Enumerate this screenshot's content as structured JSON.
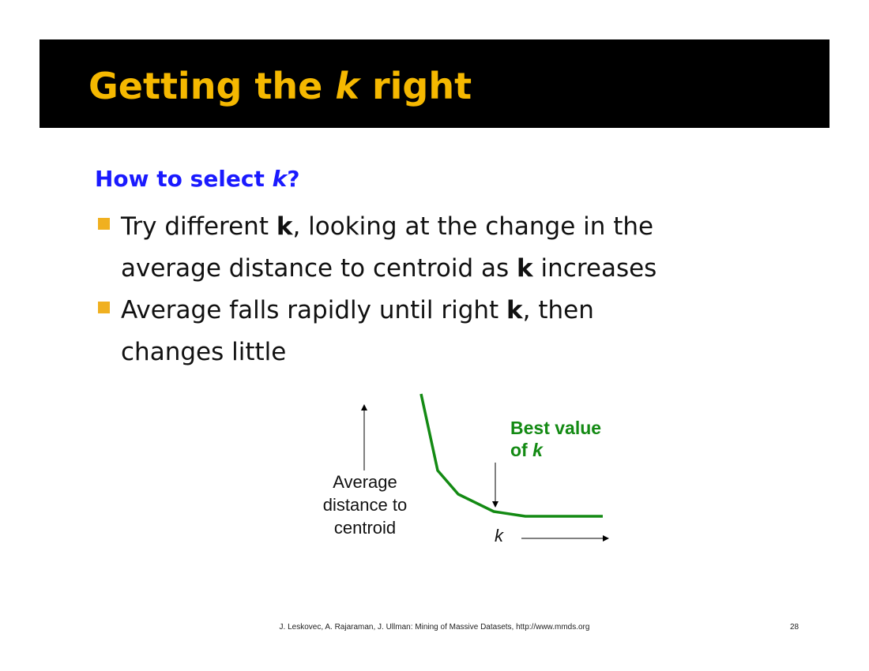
{
  "slide": {
    "title_pre": "Getting the ",
    "title_k": "k",
    "title_post": " right",
    "heading_pre": "How to select ",
    "heading_k": "k",
    "heading_post": "?",
    "bullets": [
      {
        "lines": [
          [
            "Try different ",
            "k",
            ", looking at the change in the"
          ],
          [
            "average distance to centroid as ",
            "k",
            " increases"
          ]
        ]
      },
      {
        "lines": [
          [
            "Average falls rapidly until right ",
            "k",
            ", then"
          ],
          [
            "changes little",
            "",
            ""
          ]
        ]
      }
    ],
    "footer": "J. Leskovec, A. Rajaraman, J. Ullman: Mining of Massive Datasets, http://www.mmds.org",
    "page_number": "28",
    "colors": {
      "title": "#f5b800",
      "heading": "#1a1aff",
      "bullet": "#f0b020",
      "curve": "#138a13"
    }
  },
  "diagram": {
    "y_axis_label": [
      "Average",
      "distance to",
      "centroid"
    ],
    "x_axis_label": "k",
    "annotation_line1": "Best value",
    "annotation_line2_pre": "of ",
    "annotation_line2_k": "k"
  }
}
